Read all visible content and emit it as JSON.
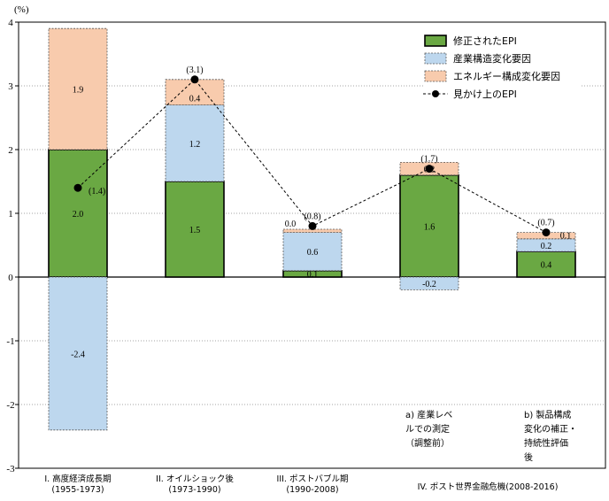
{
  "chart_data": {
    "type": "bar",
    "stacked": true,
    "yunit": "(%)",
    "ylim": [
      -3,
      4
    ],
    "yticks": [
      4,
      3,
      2,
      1,
      0,
      -1,
      -2,
      -3
    ],
    "grid": true,
    "legend_position": "top-right",
    "colors": {
      "epi": "#6aa843",
      "structure": "#bdd7ee",
      "energy": "#f8cbad",
      "apparent_line": "#000000"
    },
    "groups": [
      {
        "lines": [
          "I. 高度経済成長期",
          "(1955-1973)"
        ]
      },
      {
        "lines": [
          "II. オイルショック後",
          "(1973-1990)"
        ]
      },
      {
        "lines": [
          "III. ポストバブル期",
          "(1990-2008)"
        ]
      },
      {
        "lines": [
          "IV. ポスト世界金融危機(2008-2016)"
        ]
      }
    ],
    "subcategories": [
      {
        "lines": [
          "a) 産業レベ",
          "ルでの測定",
          "（調整前）"
        ]
      },
      {
        "lines": [
          "b) 製品構成",
          "変化の補正・",
          "持続性評価",
          "後"
        ]
      }
    ],
    "series": [
      {
        "name": "修正されたEPI",
        "key": "epi",
        "kind": "bar",
        "values": [
          2.0,
          1.5,
          0.1,
          1.6,
          0.4
        ],
        "labels": [
          "2.0",
          "1.5",
          "0.1",
          "1.6",
          "0.4"
        ]
      },
      {
        "name": "産業構造変化要因",
        "key": "structure",
        "kind": "bar",
        "values": [
          -2.4,
          1.2,
          0.6,
          -0.2,
          0.2
        ],
        "labels": [
          "-2.4",
          "1.2",
          "0.6",
          "-0.2",
          "0.2"
        ]
      },
      {
        "name": "エネルギー構成変化要因",
        "key": "energy",
        "kind": "bar",
        "values": [
          1.9,
          0.4,
          0.05,
          0.2,
          0.1
        ],
        "labels": [
          "1.9",
          "0.4",
          "0.0",
          "0.2",
          "0.1"
        ]
      },
      {
        "name": "見かけ上のEPI",
        "key": "apparent",
        "kind": "line",
        "values": [
          1.4,
          3.1,
          0.8,
          1.7,
          0.7
        ],
        "labels": [
          "(1.4)",
          "(3.1)",
          "(0.8)",
          "(1.7)",
          "(0.7)"
        ]
      }
    ]
  }
}
